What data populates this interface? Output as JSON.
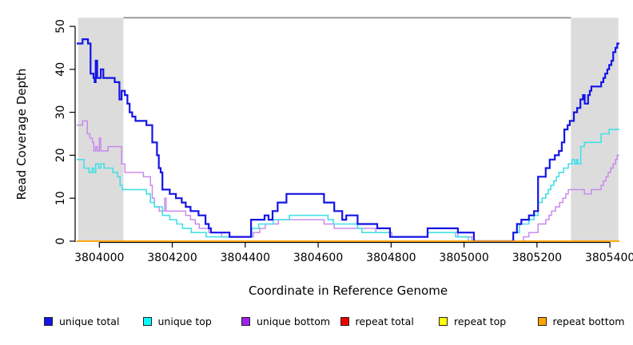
{
  "chart_data": {
    "type": "line",
    "subtype": "step-after",
    "title": "",
    "xlabel": "Coordinate in Reference Genome",
    "ylabel": "Read Coverage Depth",
    "xlim": [
      3803938,
      3805426
    ],
    "ylim": [
      0,
      50
    ],
    "xticks": [
      3804000,
      3804200,
      3804400,
      3804600,
      3804800,
      3805000,
      3805200,
      3805400
    ],
    "yticks": [
      0,
      10,
      20,
      30,
      40,
      50
    ],
    "grid": false,
    "background": "#FFFFFF",
    "band_color": "#DCDCDC",
    "band_top": 52,
    "shaded_regions": [
      {
        "x0": 3803942,
        "x1": 3804066
      },
      {
        "x0": 3805293,
        "x1": 3805423
      }
    ],
    "top_segment": {
      "x0": 3804066,
      "x1": 3805293,
      "y": 52,
      "color": "#9C9C9C"
    },
    "series": [
      {
        "name": "unique total",
        "color": "#1414E6",
        "points": [
          [
            3803938,
            46
          ],
          [
            3803954,
            47
          ],
          [
            3803969,
            46
          ],
          [
            3803976,
            39
          ],
          [
            3803984,
            38
          ],
          [
            3803987,
            37
          ],
          [
            3803990,
            42
          ],
          [
            3803994,
            38
          ],
          [
            3804004,
            40
          ],
          [
            3804011,
            38
          ],
          [
            3804042,
            37
          ],
          [
            3804055,
            33
          ],
          [
            3804061,
            35
          ],
          [
            3804070,
            34
          ],
          [
            3804077,
            32
          ],
          [
            3804083,
            30
          ],
          [
            3804090,
            29
          ],
          [
            3804099,
            28
          ],
          [
            3804129,
            27
          ],
          [
            3804145,
            23
          ],
          [
            3804158,
            20
          ],
          [
            3804163,
            17
          ],
          [
            3804168,
            16
          ],
          [
            3804173,
            12
          ],
          [
            3804193,
            11
          ],
          [
            3804210,
            10
          ],
          [
            3804226,
            9
          ],
          [
            3804237,
            8
          ],
          [
            3804250,
            7
          ],
          [
            3804272,
            6
          ],
          [
            3804291,
            4
          ],
          [
            3804300,
            3
          ],
          [
            3804306,
            2
          ],
          [
            3804357,
            1
          ],
          [
            3804416,
            5
          ],
          [
            3804453,
            6
          ],
          [
            3804464,
            5
          ],
          [
            3804475,
            7
          ],
          [
            3804489,
            9
          ],
          [
            3804513,
            11
          ],
          [
            3804616,
            9
          ],
          [
            3804644,
            7
          ],
          [
            3804666,
            5
          ],
          [
            3804677,
            6
          ],
          [
            3804708,
            4
          ],
          [
            3804762,
            3
          ],
          [
            3804797,
            1
          ],
          [
            3804900,
            3
          ],
          [
            3804983,
            2
          ],
          [
            3805027,
            0
          ],
          [
            3805135,
            2
          ],
          [
            3805145,
            4
          ],
          [
            3805157,
            5
          ],
          [
            3805178,
            6
          ],
          [
            3805192,
            7
          ],
          [
            3805203,
            15
          ],
          [
            3805224,
            17
          ],
          [
            3805235,
            19
          ],
          [
            3805249,
            20
          ],
          [
            3805260,
            21
          ],
          [
            3805268,
            23
          ],
          [
            3805275,
            26
          ],
          [
            3805284,
            27
          ],
          [
            3805290,
            28
          ],
          [
            3805301,
            30
          ],
          [
            3805310,
            31
          ],
          [
            3805319,
            33
          ],
          [
            3805326,
            34
          ],
          [
            3805331,
            32
          ],
          [
            3805340,
            34
          ],
          [
            3805345,
            35
          ],
          [
            3805349,
            36
          ],
          [
            3805376,
            37
          ],
          [
            3805382,
            38
          ],
          [
            3805387,
            39
          ],
          [
            3805393,
            40
          ],
          [
            3805398,
            41
          ],
          [
            3805404,
            42
          ],
          [
            3805409,
            44
          ],
          [
            3805415,
            45
          ],
          [
            3805420,
            46
          ]
        ]
      },
      {
        "name": "unique top",
        "color": "#45E0E6",
        "points": [
          [
            3803938,
            19
          ],
          [
            3803958,
            17
          ],
          [
            3803972,
            16
          ],
          [
            3803980,
            17
          ],
          [
            3803985,
            16
          ],
          [
            3803990,
            18
          ],
          [
            3803998,
            17
          ],
          [
            3804004,
            18
          ],
          [
            3804013,
            17
          ],
          [
            3804037,
            16
          ],
          [
            3804050,
            15
          ],
          [
            3804057,
            13
          ],
          [
            3804063,
            12
          ],
          [
            3804129,
            11
          ],
          [
            3804140,
            9
          ],
          [
            3804151,
            8
          ],
          [
            3804173,
            6
          ],
          [
            3804193,
            5
          ],
          [
            3804212,
            4
          ],
          [
            3804228,
            3
          ],
          [
            3804252,
            2
          ],
          [
            3804293,
            1
          ],
          [
            3804418,
            3
          ],
          [
            3804437,
            4
          ],
          [
            3804477,
            5
          ],
          [
            3804521,
            6
          ],
          [
            3804627,
            5
          ],
          [
            3804642,
            4
          ],
          [
            3804708,
            3
          ],
          [
            3804720,
            2
          ],
          [
            3804797,
            1
          ],
          [
            3804900,
            2
          ],
          [
            3804977,
            1
          ],
          [
            3805012,
            0
          ],
          [
            3805135,
            2
          ],
          [
            3805152,
            4
          ],
          [
            3805178,
            5
          ],
          [
            3805192,
            6
          ],
          [
            3805203,
            9
          ],
          [
            3805214,
            10
          ],
          [
            3805224,
            11
          ],
          [
            3805231,
            12
          ],
          [
            3805238,
            13
          ],
          [
            3805246,
            14
          ],
          [
            3805253,
            15
          ],
          [
            3805260,
            16
          ],
          [
            3805273,
            17
          ],
          [
            3805286,
            18
          ],
          [
            3805297,
            19
          ],
          [
            3805303,
            18
          ],
          [
            3805308,
            19
          ],
          [
            3805312,
            18
          ],
          [
            3805320,
            22
          ],
          [
            3805330,
            23
          ],
          [
            3805376,
            25
          ],
          [
            3805398,
            26
          ]
        ]
      },
      {
        "name": "unique bottom",
        "color": "#C685EC",
        "points": [
          [
            3803938,
            27
          ],
          [
            3803954,
            28
          ],
          [
            3803967,
            25
          ],
          [
            3803974,
            24
          ],
          [
            3803981,
            23
          ],
          [
            3803985,
            21
          ],
          [
            3803990,
            22
          ],
          [
            3803994,
            21
          ],
          [
            3804000,
            24
          ],
          [
            3804004,
            21
          ],
          [
            3804024,
            22
          ],
          [
            3804061,
            18
          ],
          [
            3804070,
            16
          ],
          [
            3804121,
            15
          ],
          [
            3804140,
            13
          ],
          [
            3804145,
            10
          ],
          [
            3804151,
            8
          ],
          [
            3804164,
            7
          ],
          [
            3804179,
            10
          ],
          [
            3804183,
            7
          ],
          [
            3804237,
            6
          ],
          [
            3804250,
            5
          ],
          [
            3804263,
            4
          ],
          [
            3804274,
            3
          ],
          [
            3804300,
            2
          ],
          [
            3804335,
            1
          ],
          [
            3804422,
            2
          ],
          [
            3804440,
            3
          ],
          [
            3804455,
            4
          ],
          [
            3804491,
            5
          ],
          [
            3804616,
            4
          ],
          [
            3804644,
            3
          ],
          [
            3804758,
            2
          ],
          [
            3804802,
            1
          ],
          [
            3804900,
            2
          ],
          [
            3804983,
            1
          ],
          [
            3805021,
            0
          ],
          [
            3805163,
            1
          ],
          [
            3805178,
            2
          ],
          [
            3805203,
            4
          ],
          [
            3805224,
            5
          ],
          [
            3805233,
            6
          ],
          [
            3805240,
            7
          ],
          [
            3805251,
            8
          ],
          [
            3805262,
            9
          ],
          [
            3805271,
            10
          ],
          [
            3805279,
            11
          ],
          [
            3805286,
            12
          ],
          [
            3805330,
            11
          ],
          [
            3805349,
            12
          ],
          [
            3805376,
            13
          ],
          [
            3805382,
            14
          ],
          [
            3805389,
            15
          ],
          [
            3805395,
            16
          ],
          [
            3805402,
            17
          ],
          [
            3805409,
            18
          ],
          [
            3805415,
            19
          ],
          [
            3805420,
            20
          ]
        ]
      },
      {
        "name": "repeat total",
        "color": "#EE0000",
        "points": [
          [
            3803938,
            0
          ]
        ]
      },
      {
        "name": "repeat top",
        "color": "#FFFF00",
        "points": [
          [
            3803938,
            0
          ]
        ]
      },
      {
        "name": "repeat bottom",
        "color": "#FFA500",
        "points": [
          [
            3803938,
            0
          ]
        ]
      }
    ],
    "legend_position": "bottom"
  },
  "legend": {
    "items": [
      {
        "label": "unique total",
        "fill": "#1414E6"
      },
      {
        "label": "unique top",
        "fill": "#00FFFF"
      },
      {
        "label": "unique bottom",
        "fill": "#A020F0"
      },
      {
        "label": "repeat total",
        "fill": "#EE0000"
      },
      {
        "label": "repeat top",
        "fill": "#FFFF00"
      },
      {
        "label": "repeat bottom",
        "fill": "#FFA500"
      }
    ]
  }
}
